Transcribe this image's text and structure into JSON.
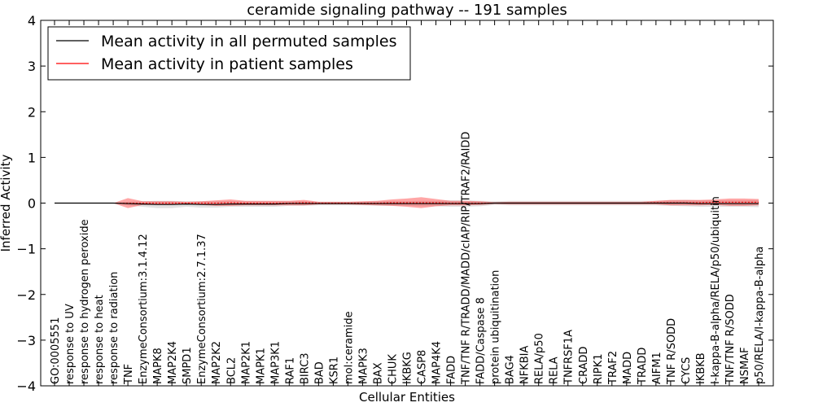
{
  "chart_data": {
    "type": "line",
    "title": "ceramide signaling pathway -- 191 samples",
    "xlabel": "Cellular Entities",
    "ylabel": "Inferred Activity",
    "ylim": [
      -4,
      4
    ],
    "yticks": [
      -4,
      -3,
      -2,
      -1,
      0,
      1,
      2,
      3,
      4
    ],
    "ytick_labels": [
      "−4",
      "−3",
      "−2",
      "−1",
      "0",
      "1",
      "2",
      "3",
      "4"
    ],
    "grid": false,
    "legend_position": "top-left",
    "categories": [
      "GO:0005551",
      "response to UV",
      "response to hydrogen peroxide",
      "response to heat",
      "response to radiation",
      "TNF",
      "EnzymeConsortium:3.1.4.12",
      "MAPK8",
      "MAP2K4",
      "SMPD1",
      "EnzymeConsortium:2.7.1.37",
      "MAP2K2",
      "BCL2",
      "MAP2K1",
      "MAPK1",
      "MAP3K1",
      "RAF1",
      "BIRC3",
      "BAD",
      "KSR1",
      "mol:ceramide",
      "MAPK3",
      "BAX",
      "CHUK",
      "IKBKG",
      "CASP8",
      "MAP4K4",
      "FADD",
      "TNF/TNF R/TRADD/MADD/cIAP/RIP/TRAF2/RAIDD",
      "FADD/Caspase 8",
      "protein ubiquitination",
      "BAG4",
      "NFKBIA",
      "RELA/p50",
      "RELA",
      "TNFRSF1A",
      "CRADD",
      "RIPK1",
      "TRAF2",
      "MADD",
      "TRADD",
      "AIFM1",
      "TNF R/SODD",
      "CYCS",
      "IKBKB",
      "I-kappa-B-alpha/RELA/p50/ubiquitin",
      "TNF/TNF R/SODD",
      "NSMAF",
      "p50/RELA/I-kappa-B-alpha"
    ],
    "series": [
      {
        "name": "Mean activity in all permuted samples",
        "color": "#000000",
        "values": [
          0,
          0,
          0,
          0,
          0,
          -0.01,
          -0.02,
          -0.03,
          -0.03,
          -0.02,
          -0.03,
          -0.03,
          -0.02,
          -0.02,
          -0.02,
          -0.02,
          -0.01,
          -0.01,
          -0.01,
          -0.01,
          -0.01,
          -0.01,
          -0.01,
          -0.01,
          -0.01,
          -0.01,
          -0.01,
          -0.01,
          -0.01,
          -0.01,
          0,
          0,
          0,
          0,
          0,
          0,
          0,
          0,
          0,
          0,
          0,
          0,
          0,
          0,
          -0.01,
          -0.01,
          -0.01,
          -0.01,
          -0.01
        ],
        "band": [
          0,
          0,
          0,
          0,
          0,
          0.04,
          0.06,
          0.08,
          0.08,
          0.06,
          0.07,
          0.07,
          0.06,
          0.06,
          0.06,
          0.06,
          0.05,
          0.05,
          0.04,
          0.04,
          0.04,
          0.04,
          0.05,
          0.05,
          0.05,
          0.06,
          0.06,
          0.07,
          0.07,
          0.06,
          0.04,
          0.05,
          0.05,
          0.05,
          0.05,
          0.05,
          0.05,
          0.05,
          0.05,
          0.05,
          0.05,
          0.05,
          0.06,
          0.07,
          0.07,
          0.07,
          0.07,
          0.07,
          0.08
        ]
      },
      {
        "name": "Mean activity in patient samples",
        "color": "#ff0000",
        "values": [
          0,
          0,
          0,
          0,
          0,
          0,
          0,
          0,
          0,
          0,
          0,
          0,
          0.01,
          0,
          0,
          0,
          0,
          0.01,
          0,
          0,
          0,
          0,
          0,
          0.01,
          0.01,
          0.01,
          0.01,
          0,
          0,
          0,
          0,
          0,
          0,
          0,
          0,
          0,
          0,
          0,
          0,
          0,
          0,
          0.01,
          0.01,
          0.01,
          0.01,
          0.02,
          0.02,
          0.02,
          0.02
        ],
        "band": [
          0,
          0,
          0,
          0,
          0,
          0.11,
          0.04,
          0.04,
          0.04,
          0.03,
          0.04,
          0.06,
          0.07,
          0.05,
          0.05,
          0.05,
          0.05,
          0.06,
          0.03,
          0.03,
          0.03,
          0.04,
          0.05,
          0.07,
          0.09,
          0.12,
          0.08,
          0.05,
          0.05,
          0.04,
          0.02,
          0.03,
          0.03,
          0.03,
          0.03,
          0.03,
          0.03,
          0.03,
          0.03,
          0.03,
          0.03,
          0.04,
          0.06,
          0.06,
          0.06,
          0.06,
          0.08,
          0.08,
          0.07
        ]
      }
    ]
  }
}
